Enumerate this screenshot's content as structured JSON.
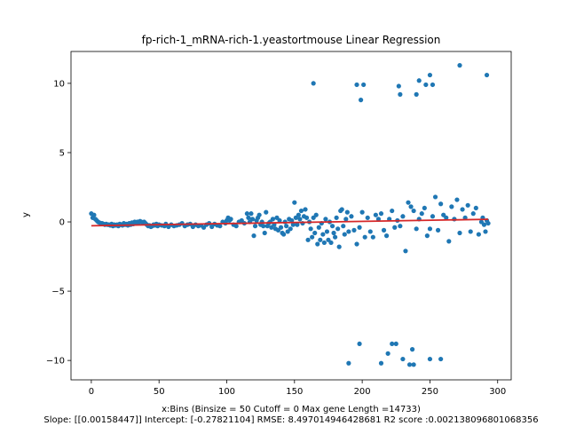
{
  "chart_data": {
    "type": "scatter",
    "title": "fp-rich-1_mRNA-rich-1.yeastortmouse Linear Regression",
    "xlabel": "x:Bins  (Binsize = 50 Cutoff = 0 Max gene Length =14733)",
    "xlabel_line2": "Slope: [[0.00158447]] Intercept: [-0.27821104] RMSE: 8.497014946428681 R2 score :0.002138096801068356",
    "ylabel": "y",
    "xlim": [
      -15,
      310
    ],
    "ylim": [
      -11.4,
      12.3
    ],
    "xticks": [
      0,
      50,
      100,
      150,
      200,
      250,
      300
    ],
    "xtick_labels": [
      "0",
      "50",
      "100",
      "150",
      "200",
      "250",
      "300"
    ],
    "yticks": [
      -10,
      -5,
      0,
      5,
      10
    ],
    "ytick_labels": [
      "−10",
      "−5",
      "0",
      "5",
      "10"
    ],
    "grid": false,
    "point_color": "#1f77b4",
    "line_color": "#d62728",
    "regression": {
      "slope": 0.00158447,
      "intercept": -0.27821104,
      "x_start": 0,
      "x_end": 293
    },
    "series": [
      {
        "points": [
          [
            0,
            0.6
          ],
          [
            1,
            0.3
          ],
          [
            2,
            0.5
          ],
          [
            3,
            0.2
          ],
          [
            4,
            0.1
          ],
          [
            5,
            0.0
          ],
          [
            6,
            -0.05
          ],
          [
            7,
            -0.1
          ],
          [
            8,
            -0.1
          ],
          [
            9,
            -0.15
          ],
          [
            10,
            -0.2
          ],
          [
            11,
            -0.15
          ],
          [
            12,
            -0.2
          ],
          [
            13,
            -0.2
          ],
          [
            14,
            -0.25
          ],
          [
            15,
            -0.15
          ],
          [
            16,
            -0.3
          ],
          [
            17,
            -0.2
          ],
          [
            18,
            -0.25
          ],
          [
            19,
            -0.2
          ],
          [
            20,
            -0.3
          ],
          [
            21,
            -0.15
          ],
          [
            22,
            -0.2
          ],
          [
            23,
            -0.25
          ],
          [
            24,
            -0.1
          ],
          [
            25,
            -0.2
          ],
          [
            26,
            -0.15
          ],
          [
            27,
            -0.25
          ],
          [
            28,
            -0.1
          ],
          [
            29,
            -0.2
          ],
          [
            30,
            -0.05
          ],
          [
            31,
            -0.15
          ],
          [
            32,
            0.0
          ],
          [
            33,
            -0.1
          ],
          [
            34,
            0.0
          ],
          [
            35,
            -0.05
          ],
          [
            36,
            0.05
          ],
          [
            37,
            0.0
          ],
          [
            38,
            -0.05
          ],
          [
            39,
            0.0
          ],
          [
            40,
            -0.1
          ],
          [
            41,
            -0.2
          ],
          [
            42,
            -0.3
          ],
          [
            43,
            -0.25
          ],
          [
            44,
            -0.35
          ],
          [
            45,
            -0.3
          ],
          [
            46,
            -0.2
          ],
          [
            47,
            -0.25
          ],
          [
            48,
            -0.15
          ],
          [
            49,
            -0.3
          ],
          [
            50,
            -0.2
          ],
          [
            52,
            -0.25
          ],
          [
            54,
            -0.3
          ],
          [
            55,
            -0.15
          ],
          [
            57,
            -0.35
          ],
          [
            59,
            -0.2
          ],
          [
            61,
            -0.3
          ],
          [
            63,
            -0.25
          ],
          [
            65,
            -0.2
          ],
          [
            67,
            -0.1
          ],
          [
            69,
            -0.3
          ],
          [
            71,
            -0.2
          ],
          [
            73,
            -0.15
          ],
          [
            75,
            -0.35
          ],
          [
            77,
            -0.2
          ],
          [
            79,
            -0.3
          ],
          [
            81,
            -0.25
          ],
          [
            83,
            -0.4
          ],
          [
            85,
            -0.2
          ],
          [
            87,
            -0.1
          ],
          [
            89,
            -0.35
          ],
          [
            91,
            -0.15
          ],
          [
            93,
            -0.25
          ],
          [
            95,
            -0.3
          ],
          [
            97,
            0.0
          ],
          [
            99,
            -0.1
          ],
          [
            100,
            0.1
          ],
          [
            101,
            0.3
          ],
          [
            102,
            0.1
          ],
          [
            103,
            0.2
          ],
          [
            105,
            -0.2
          ],
          [
            107,
            -0.3
          ],
          [
            109,
            0.0
          ],
          [
            111,
            0.1
          ],
          [
            113,
            -0.1
          ],
          [
            115,
            0.6
          ],
          [
            116,
            0.3
          ],
          [
            117,
            0.0
          ],
          [
            118,
            0.6
          ],
          [
            119,
            0.2
          ],
          [
            120,
            -1.0
          ],
          [
            121,
            -0.3
          ],
          [
            122,
            0.1
          ],
          [
            123,
            0.3
          ],
          [
            124,
            0.5
          ],
          [
            125,
            -0.2
          ],
          [
            126,
            0.0
          ],
          [
            127,
            -0.3
          ],
          [
            128,
            -0.8
          ],
          [
            129,
            0.7
          ],
          [
            130,
            -0.3
          ],
          [
            131,
            -0.1
          ],
          [
            132,
            0.0
          ],
          [
            133,
            -0.4
          ],
          [
            134,
            0.2
          ],
          [
            135,
            -0.2
          ],
          [
            136,
            -0.5
          ],
          [
            137,
            0.3
          ],
          [
            138,
            -0.6
          ],
          [
            139,
            0.1
          ],
          [
            140,
            -0.4
          ],
          [
            141,
            -0.8
          ],
          [
            142,
            -0.9
          ],
          [
            143,
            0.0
          ],
          [
            144,
            -0.3
          ],
          [
            145,
            -0.7
          ],
          [
            146,
            0.2
          ],
          [
            147,
            -0.5
          ],
          [
            148,
            0.1
          ],
          [
            149,
            -0.2
          ],
          [
            150,
            1.4
          ],
          [
            151,
            0.3
          ],
          [
            152,
            -0.2
          ],
          [
            153,
            0.5
          ],
          [
            154,
            0.2
          ],
          [
            155,
            0.8
          ],
          [
            156,
            -0.1
          ],
          [
            157,
            0.4
          ],
          [
            158,
            0.9
          ],
          [
            159,
            0.3
          ],
          [
            160,
            -1.3
          ],
          [
            161,
            0.0
          ],
          [
            162,
            -0.5
          ],
          [
            163,
            -1.1
          ],
          [
            164,
            0.3
          ],
          [
            165,
            -0.8
          ],
          [
            166,
            0.5
          ],
          [
            167,
            -1.6
          ],
          [
            168,
            -0.4
          ],
          [
            169,
            -1.3
          ],
          [
            170,
            -0.1
          ],
          [
            171,
            -0.9
          ],
          [
            172,
            -1.5
          ],
          [
            173,
            0.2
          ],
          [
            174,
            -0.7
          ],
          [
            175,
            -1.3
          ],
          [
            176,
            0.0
          ],
          [
            177,
            -1.5
          ],
          [
            178,
            -0.3
          ],
          [
            179,
            -0.8
          ],
          [
            180,
            -1.1
          ],
          [
            181,
            0.3
          ],
          [
            182,
            -0.5
          ],
          [
            183,
            -1.8
          ],
          [
            184,
            0.8
          ],
          [
            185,
            0.9
          ],
          [
            186,
            -0.3
          ],
          [
            187,
            -0.9
          ],
          [
            188,
            0.2
          ],
          [
            189,
            0.7
          ],
          [
            190,
            -0.7
          ],
          [
            192,
            0.4
          ],
          [
            194,
            -0.6
          ],
          [
            196,
            -1.6
          ],
          [
            198,
            -0.4
          ],
          [
            200,
            0.7
          ],
          [
            202,
            -1.1
          ],
          [
            204,
            0.3
          ],
          [
            206,
            -0.7
          ],
          [
            208,
            -1.1
          ],
          [
            210,
            0.5
          ],
          [
            212,
            0.2
          ],
          [
            214,
            0.6
          ],
          [
            216,
            -0.6
          ],
          [
            218,
            -1.0
          ],
          [
            220,
            0.2
          ],
          [
            222,
            0.8
          ],
          [
            224,
            -0.4
          ],
          [
            226,
            0.1
          ],
          [
            228,
            -0.3
          ],
          [
            230,
            0.4
          ],
          [
            232,
            -2.1
          ],
          [
            234,
            1.4
          ],
          [
            236,
            1.1
          ],
          [
            238,
            0.8
          ],
          [
            240,
            -0.5
          ],
          [
            242,
            0.2
          ],
          [
            244,
            0.6
          ],
          [
            246,
            1.0
          ],
          [
            248,
            -1.0
          ],
          [
            250,
            -0.5
          ],
          [
            252,
            0.4
          ],
          [
            254,
            1.8
          ],
          [
            256,
            -0.6
          ],
          [
            258,
            1.3
          ],
          [
            260,
            0.5
          ],
          [
            262,
            0.3
          ],
          [
            264,
            -1.4
          ],
          [
            266,
            1.1
          ],
          [
            268,
            0.2
          ],
          [
            270,
            1.6
          ],
          [
            272,
            -0.8
          ],
          [
            274,
            0.9
          ],
          [
            276,
            0.3
          ],
          [
            278,
            1.2
          ],
          [
            280,
            -0.7
          ],
          [
            282,
            0.6
          ],
          [
            284,
            1.0
          ],
          [
            286,
            -0.9
          ],
          [
            288,
            0.0
          ],
          [
            289,
            0.3
          ],
          [
            290,
            -0.2
          ],
          [
            291,
            -0.7
          ],
          [
            292,
            0.1
          ],
          [
            293,
            -0.1
          ],
          [
            164,
            10.0
          ],
          [
            196,
            9.9
          ],
          [
            199,
            8.8
          ],
          [
            201,
            9.9
          ],
          [
            227,
            9.8
          ],
          [
            228,
            9.2
          ],
          [
            240,
            9.2
          ],
          [
            242,
            10.2
          ],
          [
            247,
            9.9
          ],
          [
            250,
            10.6
          ],
          [
            252,
            9.9
          ],
          [
            272,
            11.3
          ],
          [
            292,
            10.6
          ],
          [
            190,
            -10.2
          ],
          [
            198,
            -8.8
          ],
          [
            214,
            -10.2
          ],
          [
            219,
            -9.5
          ],
          [
            222,
            -8.8
          ],
          [
            225,
            -8.8
          ],
          [
            230,
            -9.9
          ],
          [
            235,
            -10.3
          ],
          [
            237,
            -9.2
          ],
          [
            238,
            -10.3
          ],
          [
            250,
            -9.9
          ],
          [
            258,
            -9.9
          ]
        ]
      }
    ]
  }
}
